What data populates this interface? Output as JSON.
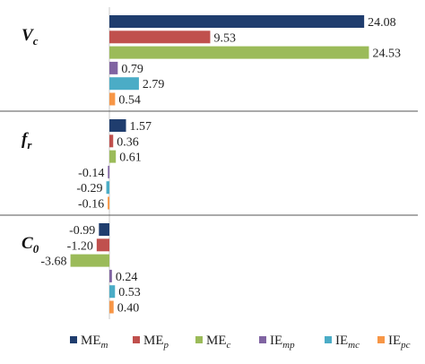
{
  "chart_data": {
    "type": "bar",
    "orientation": "horizontal",
    "groups": [
      {
        "name": "V",
        "sub": "c"
      },
      {
        "name": "f",
        "sub": "r"
      },
      {
        "name": "C",
        "sub": "0"
      }
    ],
    "series": [
      {
        "name": "ME",
        "sub": "m",
        "color": "#1f3d6e",
        "values": [
          24.08,
          1.57,
          -0.99
        ]
      },
      {
        "name": "ME",
        "sub": "p",
        "color": "#c0504d",
        "values": [
          9.53,
          0.36,
          -1.2
        ]
      },
      {
        "name": "ME",
        "sub": "c",
        "color": "#9bbb59",
        "values": [
          24.53,
          0.61,
          -3.68
        ]
      },
      {
        "name": "IE",
        "sub": "mp",
        "color": "#8064a2",
        "values": [
          0.79,
          -0.14,
          0.24
        ]
      },
      {
        "name": "IE",
        "sub": "mc",
        "color": "#4bacc6",
        "values": [
          2.79,
          -0.29,
          0.53
        ]
      },
      {
        "name": "IE",
        "sub": "pc",
        "color": "#f79646",
        "values": [
          0.54,
          -0.16,
          0.4
        ]
      }
    ],
    "value_labels": [
      [
        "24.08",
        "1.57",
        "-0.99"
      ],
      [
        "9.53",
        "0.36",
        "-1.20"
      ],
      [
        "24.53",
        "0.61",
        "-3.68"
      ],
      [
        "0.79",
        "-0.14",
        "0.24"
      ],
      [
        "2.79",
        "-0.29",
        "0.53"
      ],
      [
        "0.54",
        "-0.16",
        "0.40"
      ]
    ],
    "legend_position": "bottom",
    "grid": false
  }
}
